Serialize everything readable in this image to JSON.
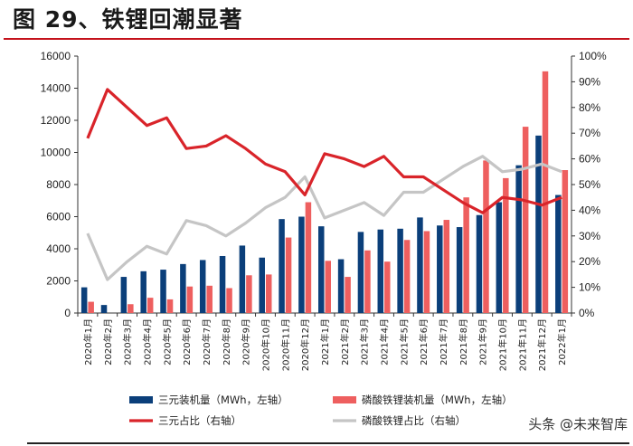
{
  "title": "图 29、铁锂回潮显著",
  "watermark": "头条 @未来智库",
  "colors": {
    "ternary_bar": "#0b3f7a",
    "lfp_bar": "#ee5f5f",
    "ternary_line": "#d9242a",
    "lfp_line": "#c5c5c5",
    "title_rule": "#c4121c"
  },
  "chart_data": {
    "type": "bar+line",
    "categories": [
      "2020年1月",
      "2020年2月",
      "2020年3月",
      "2020年4月",
      "2020年5月",
      "2020年6月",
      "2020年7月",
      "2020年8月",
      "2020年9月",
      "2020年10月",
      "2020年11月",
      "2020年12月",
      "2021年1月",
      "2021年2月",
      "2021年3月",
      "2021年4月",
      "2021年5月",
      "2021年6月",
      "2021年7月",
      "2021年8月",
      "2021年9月",
      "2021年10月",
      "2021年11月",
      "2021年12月",
      "2022年1月"
    ],
    "left_axis": {
      "min": 0,
      "max": 16000,
      "ticks": [
        "0",
        "2000",
        "4000",
        "6000",
        "8000",
        "10000",
        "12000",
        "14000",
        "16000"
      ]
    },
    "right_axis": {
      "min": 0,
      "max": 100,
      "ticks": [
        "0%",
        "10%",
        "20%",
        "30%",
        "40%",
        "50%",
        "60%",
        "70%",
        "80%",
        "90%",
        "100%"
      ]
    },
    "series": [
      {
        "name": "三元装机量（MWh，左轴）",
        "type": "bar",
        "axis": "left",
        "values": [
          1600,
          500,
          2250,
          2600,
          2700,
          3050,
          3300,
          3550,
          4200,
          3450,
          5850,
          6000,
          5400,
          3350,
          5050,
          5200,
          5250,
          5950,
          5450,
          5350,
          6100,
          6900,
          9200,
          11050,
          7350
        ]
      },
      {
        "name": "磷酸铁锂装机量（MWh，左轴）",
        "type": "bar",
        "axis": "left",
        "values": [
          700,
          0,
          550,
          950,
          850,
          1650,
          1700,
          1550,
          2350,
          2400,
          4700,
          6900,
          3250,
          2250,
          3900,
          3200,
          4550,
          5100,
          5800,
          7200,
          9500,
          8400,
          11600,
          15050,
          8900
        ]
      },
      {
        "name": "三元占比（右轴）",
        "type": "line",
        "axis": "right",
        "values": [
          68,
          87,
          80,
          73,
          76,
          64,
          65,
          69,
          64,
          58,
          55,
          46,
          62,
          60,
          57,
          61,
          53,
          53,
          48,
          43,
          39,
          45,
          44,
          42,
          45
        ]
      },
      {
        "name": "磷酸铁锂占比（右轴）",
        "type": "line",
        "axis": "right",
        "values": [
          31,
          13,
          20,
          26,
          23,
          36,
          34,
          30,
          35,
          41,
          45,
          53,
          37,
          40,
          43,
          38,
          47,
          47,
          52,
          57,
          61,
          55,
          56,
          58,
          55
        ]
      }
    ]
  }
}
